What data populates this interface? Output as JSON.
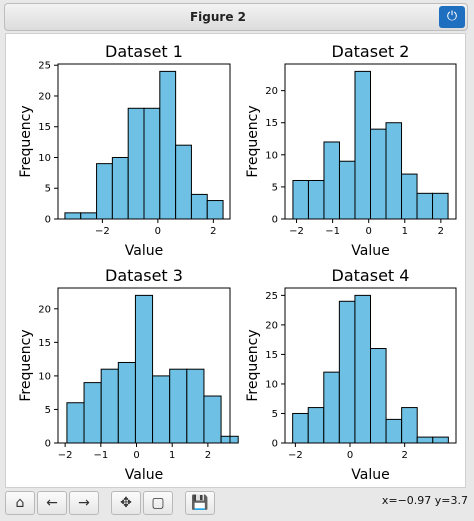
{
  "window": {
    "title": "Figure 2",
    "power_icon": "⏻"
  },
  "toolbar": {
    "buttons": [
      {
        "name": "home-icon",
        "glyph": "⌂"
      },
      {
        "name": "back-arrow-icon",
        "glyph": "←"
      },
      {
        "name": "forward-arrow-icon",
        "glyph": "→"
      },
      {
        "name": "pan-move-icon",
        "glyph": "✥"
      },
      {
        "name": "zoom-rect-icon",
        "glyph": "▢"
      },
      {
        "name": "save-icon",
        "glyph": "💾"
      }
    ]
  },
  "status": {
    "coords": "x=−0.97 y=3.7"
  },
  "colors": {
    "bar_fill": "#6ec1e4",
    "bar_edge": "#000000"
  },
  "chart_data": [
    {
      "type": "bar",
      "title": "Dataset 1",
      "xlabel": "Value",
      "ylabel": "Frequency",
      "bin_edges": [
        -3.35,
        -2.78,
        -2.21,
        -1.64,
        -1.07,
        -0.5,
        0.07,
        0.64,
        1.21,
        1.78,
        2.35
      ],
      "values": [
        1,
        1,
        9,
        10,
        18,
        18,
        24,
        12,
        4,
        3
      ],
      "xlim": [
        -3.6,
        2.6
      ],
      "ylim": [
        0,
        25.2
      ],
      "xticks": [
        -2,
        0,
        2
      ],
      "yticks": [
        0,
        5,
        10,
        15,
        20,
        25
      ]
    },
    {
      "type": "bar",
      "title": "Dataset 2",
      "xlabel": "Value",
      "ylabel": "Frequency",
      "bin_edges": [
        -2.1,
        -1.67,
        -1.24,
        -0.81,
        -0.38,
        0.05,
        0.48,
        0.91,
        1.34,
        1.77,
        2.2
      ],
      "values": [
        6,
        6,
        12,
        9,
        23,
        14,
        15,
        7,
        4,
        4
      ],
      "xlim": [
        -2.32,
        2.42
      ],
      "ylim": [
        0,
        24.15
      ],
      "xticks": [
        -2,
        -1,
        0,
        1,
        2
      ],
      "yticks": [
        0,
        5,
        10,
        15,
        20
      ]
    },
    {
      "type": "bar",
      "title": "Dataset 3",
      "xlabel": "Value",
      "ylabel": "Frequency",
      "bin_edges": [
        -1.95,
        -1.47,
        -0.99,
        -0.51,
        -0.03,
        0.45,
        0.93,
        1.41,
        1.89,
        2.37,
        2.85
      ],
      "values": [
        6,
        9,
        11,
        12,
        22,
        10,
        11,
        11,
        7,
        1
      ],
      "xlim": [
        -2.2,
        2.62
      ],
      "ylim": [
        0,
        23.1
      ],
      "xticks": [
        -2,
        -1,
        0,
        1,
        2
      ],
      "yticks": [
        0,
        5,
        10,
        15,
        20
      ]
    },
    {
      "type": "bar",
      "title": "Dataset 4",
      "xlabel": "Value",
      "ylabel": "Frequency",
      "bin_edges": [
        -2.1,
        -1.53,
        -0.96,
        -0.39,
        0.18,
        0.75,
        1.32,
        1.89,
        2.46,
        3.03,
        3.6
      ],
      "values": [
        5,
        6,
        12,
        24,
        25,
        16,
        4,
        6,
        1,
        1
      ],
      "xlim": [
        -2.38,
        3.88
      ],
      "ylim": [
        0,
        26.25
      ],
      "xticks": [
        -2,
        0,
        2
      ],
      "yticks": [
        0,
        5,
        10,
        15,
        20,
        25
      ]
    }
  ]
}
